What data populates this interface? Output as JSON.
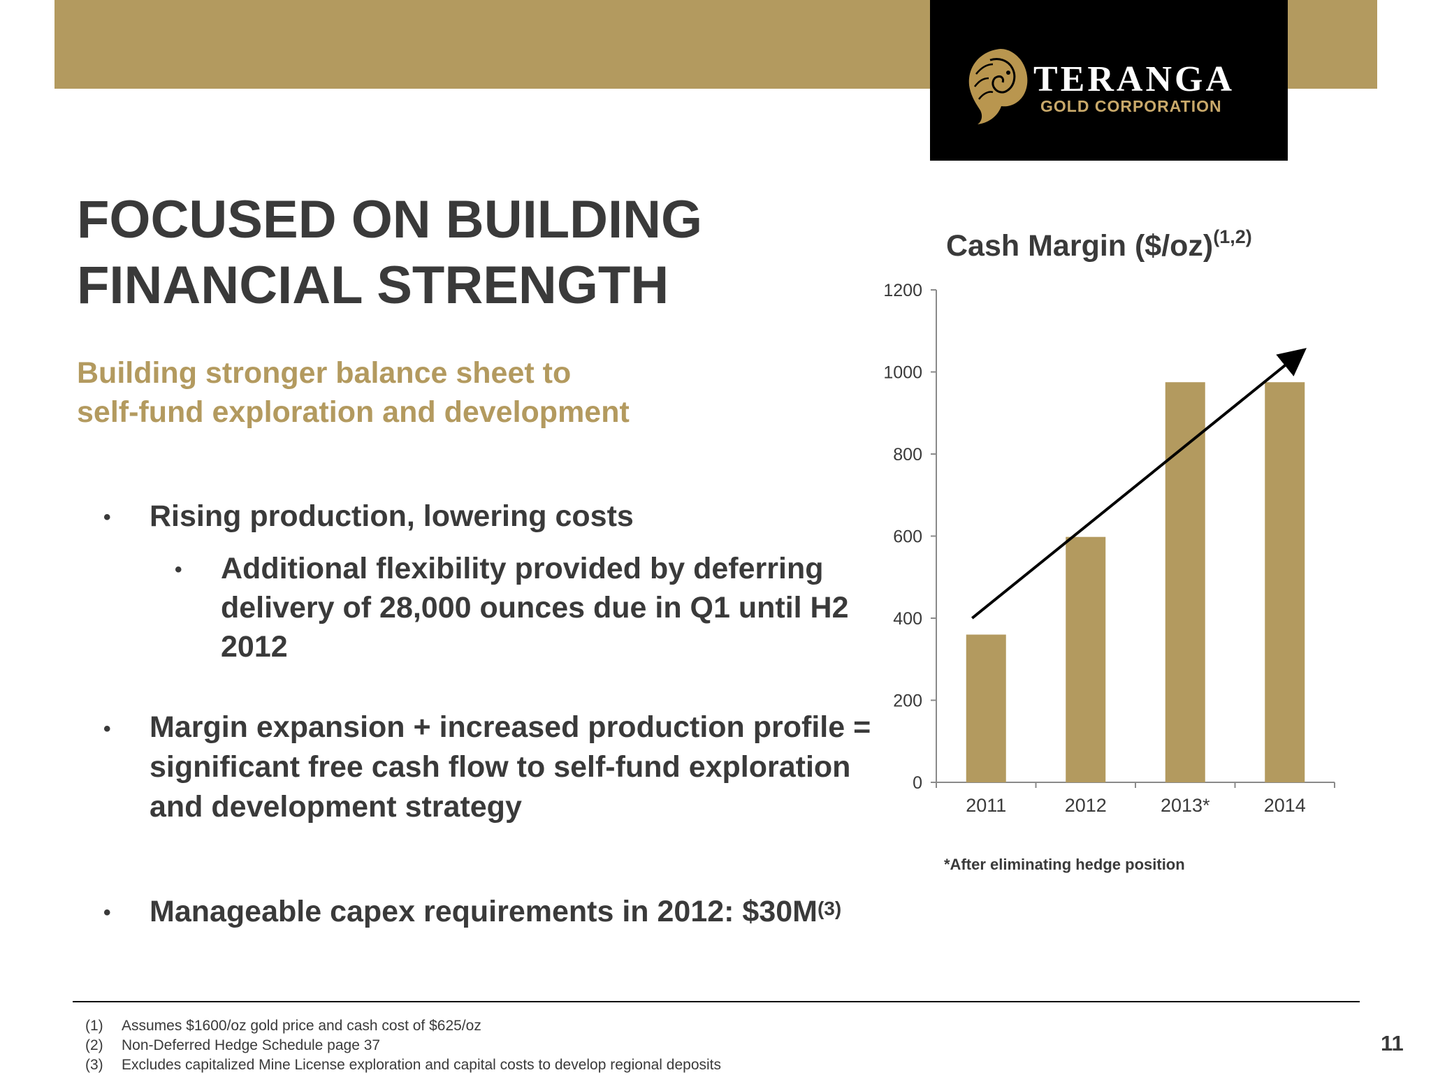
{
  "logo": {
    "name": "TERANGA",
    "subtitle": "GOLD CORPORATION"
  },
  "title": [
    "FOCUSED ON BUILDING",
    "FINANCIAL STRENGTH"
  ],
  "subtitle": [
    "Building stronger balance sheet to",
    "self-fund exploration and development"
  ],
  "bullets": {
    "b1": "Rising production, lowering costs",
    "b2": "Additional flexibility provided by deferring delivery of 28,000 ounces due in Q1 until H2 2012",
    "b3": "Margin expansion + increased production profile = significant free cash flow to self-fund exploration and development strategy",
    "b4": "Manageable capex requirements in 2012:  $30M",
    "b4_sup": "(3)"
  },
  "chart_title": "Cash Margin ($/oz)",
  "chart_title_sup": "(1,2)",
  "chart_note": "*After eliminating hedge position",
  "chart_data": {
    "type": "bar",
    "categories": [
      "2011",
      "2012",
      "2013*",
      "2014"
    ],
    "values": [
      360,
      598,
      975,
      975
    ],
    "ylim": [
      0,
      1200
    ],
    "yticks": [
      "0",
      "200",
      "400",
      "600",
      "800",
      "1000",
      "1200"
    ],
    "bar_color": "#b39a5f",
    "trend_arrow": true,
    "grid": false
  },
  "footnotes": [
    {
      "num": "(1)",
      "text": "Assumes $1600/oz gold price and cash cost of $625/oz"
    },
    {
      "num": "(2)",
      "text": "Non-Deferred Hedge Schedule page 37"
    },
    {
      "num": "(3)",
      "text": "Excludes capitalized Mine License exploration and capital costs to develop regional deposits"
    }
  ],
  "page_number": "11"
}
